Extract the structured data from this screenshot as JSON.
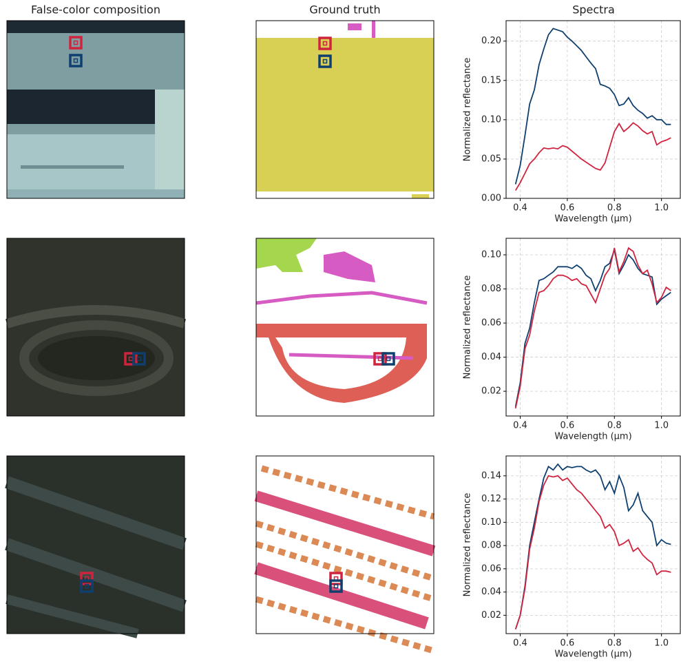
{
  "column_titles": [
    "False-color composition",
    "Ground truth",
    "Spectra"
  ],
  "chart_data": [
    {
      "type": "line",
      "xlabel": "Wavelength (µm)",
      "ylabel": "Normalized reflectance",
      "grid": true,
      "x": [
        0.38,
        0.4,
        0.42,
        0.44,
        0.46,
        0.48,
        0.5,
        0.52,
        0.54,
        0.56,
        0.58,
        0.6,
        0.62,
        0.64,
        0.66,
        0.68,
        0.7,
        0.72,
        0.74,
        0.76,
        0.78,
        0.8,
        0.82,
        0.84,
        0.86,
        0.88,
        0.9,
        0.92,
        0.94,
        0.96,
        0.98,
        1.0,
        1.02,
        1.04
      ],
      "series": [
        {
          "color": "#0e3f6e",
          "values": [
            0.018,
            0.042,
            0.08,
            0.12,
            0.138,
            0.17,
            0.19,
            0.208,
            0.216,
            0.214,
            0.212,
            0.205,
            0.2,
            0.194,
            0.188,
            0.18,
            0.172,
            0.165,
            0.145,
            0.143,
            0.14,
            0.132,
            0.118,
            0.12,
            0.128,
            0.118,
            0.112,
            0.108,
            0.102,
            0.105,
            0.1,
            0.1,
            0.094,
            0.094
          ]
        },
        {
          "color": "#d0233e",
          "values": [
            0.01,
            0.02,
            0.032,
            0.044,
            0.05,
            0.058,
            0.064,
            0.063,
            0.064,
            0.063,
            0.067,
            0.065,
            0.06,
            0.055,
            0.05,
            0.046,
            0.042,
            0.038,
            0.036,
            0.045,
            0.065,
            0.085,
            0.095,
            0.085,
            0.09,
            0.096,
            0.092,
            0.086,
            0.082,
            0.085,
            0.068,
            0.072,
            0.074,
            0.077
          ]
        }
      ],
      "xlim": [
        0.34,
        1.08
      ],
      "xticks": [
        0.4,
        0.6,
        0.8,
        {
          "value": 1,
          "label": "1.0"
        }
      ],
      "ylim": [
        0,
        0.226
      ],
      "yticks": [
        {
          "value": 0,
          "label": "0.00"
        },
        {
          "value": 0.05,
          "label": "0.05"
        },
        {
          "value": 0.1,
          "label": "0.10"
        },
        {
          "value": 0.15,
          "label": "0.15"
        },
        {
          "value": 0.2,
          "label": "0.20"
        }
      ]
    },
    {
      "type": "line",
      "xlabel": "Wavelength (µm)",
      "ylabel": "Normalized reflectance",
      "grid": true,
      "x": [
        0.38,
        0.4,
        0.42,
        0.44,
        0.46,
        0.48,
        0.5,
        0.52,
        0.54,
        0.56,
        0.58,
        0.6,
        0.62,
        0.64,
        0.66,
        0.68,
        0.7,
        0.72,
        0.74,
        0.76,
        0.78,
        0.8,
        0.82,
        0.84,
        0.86,
        0.88,
        0.9,
        0.92,
        0.94,
        0.96,
        0.98,
        1.0,
        1.02,
        1.04
      ],
      "series": [
        {
          "color": "#0e3f6e",
          "values": [
            0.011,
            0.025,
            0.048,
            0.057,
            0.072,
            0.085,
            0.086,
            0.088,
            0.09,
            0.093,
            0.093,
            0.093,
            0.092,
            0.094,
            0.092,
            0.088,
            0.086,
            0.079,
            0.085,
            0.093,
            0.095,
            0.103,
            0.089,
            0.094,
            0.1,
            0.097,
            0.092,
            0.089,
            0.088,
            0.087,
            0.071,
            0.074,
            0.076,
            0.078
          ]
        },
        {
          "color": "#d0233e",
          "values": [
            0.01,
            0.023,
            0.045,
            0.053,
            0.067,
            0.078,
            0.079,
            0.082,
            0.086,
            0.088,
            0.088,
            0.087,
            0.085,
            0.086,
            0.083,
            0.082,
            0.077,
            0.072,
            0.08,
            0.088,
            0.092,
            0.104,
            0.09,
            0.096,
            0.104,
            0.102,
            0.094,
            0.089,
            0.091,
            0.083,
            0.072,
            0.075,
            0.081,
            0.079
          ]
        }
      ],
      "xlim": [
        0.34,
        1.08
      ],
      "xticks": [
        0.4,
        0.6,
        0.8,
        {
          "value": 1,
          "label": "1.0"
        }
      ],
      "ylim": [
        0.0055,
        0.1097
      ],
      "yticks": [
        0.02,
        0.04,
        0.06,
        0.08,
        {
          "value": 0.1,
          "label": "0.10"
        }
      ]
    },
    {
      "type": "line",
      "xlabel": "Wavelength (µm)",
      "ylabel": "Normalized reflectance",
      "grid": true,
      "x": [
        0.38,
        0.4,
        0.42,
        0.44,
        0.46,
        0.48,
        0.5,
        0.52,
        0.54,
        0.56,
        0.58,
        0.6,
        0.62,
        0.64,
        0.66,
        0.68,
        0.7,
        0.72,
        0.74,
        0.76,
        0.78,
        0.8,
        0.82,
        0.84,
        0.86,
        0.88,
        0.9,
        0.92,
        0.94,
        0.96,
        0.98,
        1.0,
        1.02,
        1.04
      ],
      "series": [
        {
          "color": "#0e3f6e",
          "values": [
            0.008,
            0.02,
            0.045,
            0.08,
            0.1,
            0.12,
            0.138,
            0.148,
            0.145,
            0.15,
            0.145,
            0.148,
            0.147,
            0.148,
            0.148,
            0.145,
            0.143,
            0.145,
            0.14,
            0.128,
            0.135,
            0.125,
            0.14,
            0.13,
            0.11,
            0.115,
            0.125,
            0.11,
            0.105,
            0.1,
            0.08,
            0.085,
            0.082,
            0.081
          ]
        },
        {
          "color": "#d0233e",
          "values": [
            0.008,
            0.02,
            0.043,
            0.077,
            0.095,
            0.118,
            0.132,
            0.14,
            0.139,
            0.14,
            0.136,
            0.138,
            0.133,
            0.128,
            0.125,
            0.12,
            0.115,
            0.11,
            0.105,
            0.095,
            0.098,
            0.092,
            0.08,
            0.082,
            0.085,
            0.075,
            0.078,
            0.072,
            0.068,
            0.065,
            0.055,
            0.058,
            0.058,
            0.057
          ]
        }
      ],
      "xlim": [
        0.34,
        1.08
      ],
      "xticks": [
        0.4,
        0.6,
        0.8,
        {
          "value": 1,
          "label": "1.0"
        }
      ],
      "ylim": [
        0.0042,
        0.1571
      ],
      "yticks": [
        0.02,
        0.04,
        0.06,
        0.08,
        {
          "value": 0.1,
          "label": "0.10"
        },
        {
          "value": 0.12,
          "label": "0.12"
        },
        {
          "value": 0.14,
          "label": "0.14"
        }
      ]
    }
  ]
}
